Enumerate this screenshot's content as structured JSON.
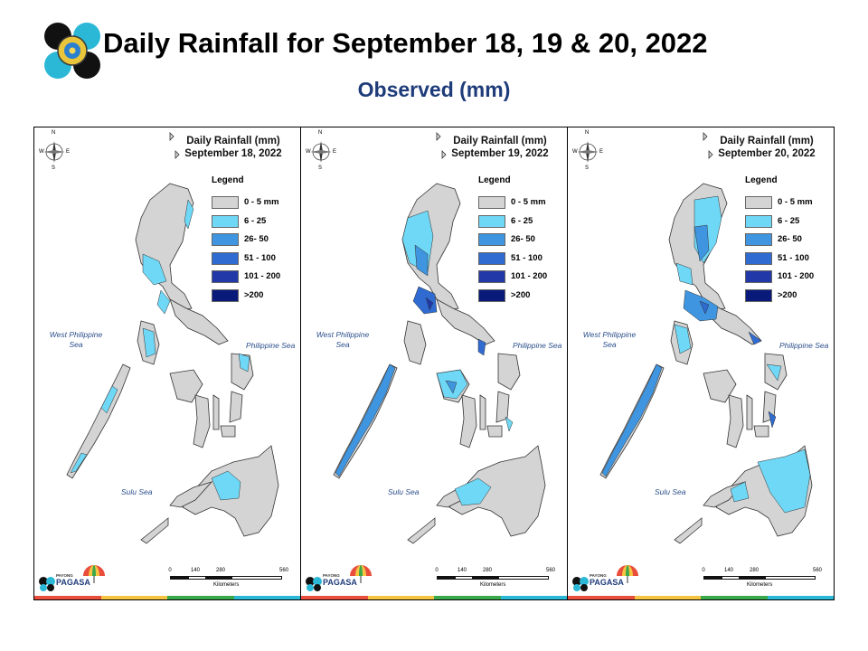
{
  "title": "Daily Rainfall for September 18, 19 & 20, 2022",
  "subtitle": "Observed (mm)",
  "colors": {
    "subtitle": "#1f3c7a",
    "land_no_rain": "#d4d4d4",
    "sea_label": "#2b4f8c"
  },
  "legend": {
    "title": "Legend",
    "items": [
      {
        "label": "0 - 5 mm",
        "color": "#d4d4d4"
      },
      {
        "label": "6 - 25",
        "color": "#6fd8f6"
      },
      {
        "label": "26- 50",
        "color": "#3f95e0"
      },
      {
        "label": "51 - 100",
        "color": "#2f6bd0"
      },
      {
        "label": "101 - 200",
        "color": "#2139a8"
      },
      {
        "label": ">200",
        "color": "#0a1a7a"
      }
    ]
  },
  "map_labels": {
    "west_philippine_sea": "West Philippine Sea",
    "philippine_sea": "Philippine Sea",
    "sulu_sea": "Sulu Sea",
    "compass": {
      "n": "N",
      "s": "S",
      "e": "E",
      "w": "W"
    }
  },
  "scale_bar": {
    "ticks": [
      "0",
      "140",
      "280",
      "560"
    ],
    "unit": "Kilometers"
  },
  "org": {
    "name": "PAGASA",
    "tagline": "PAYONG"
  },
  "panels": [
    {
      "label": "Daily Rainfall (mm)",
      "date": "September 18, 2022",
      "rain_summary": "Light rain (6-25 mm) over parts of northern and central Luzon, Mindoro, Palawan and northern Mindanao"
    },
    {
      "label": "Daily Rainfall (mm)",
      "date": "September 19, 2022",
      "rain_summary": "Moderate to heavy rain over central Luzon, Mindoro and Palawan; light rain over Visayas and Mindanao"
    },
    {
      "label": "Daily Rainfall (mm)",
      "date": "September 20, 2022",
      "rain_summary": "Heavy rain over northern and southern Luzon; light to moderate rain over Palawan and eastern Mindanao"
    }
  ]
}
